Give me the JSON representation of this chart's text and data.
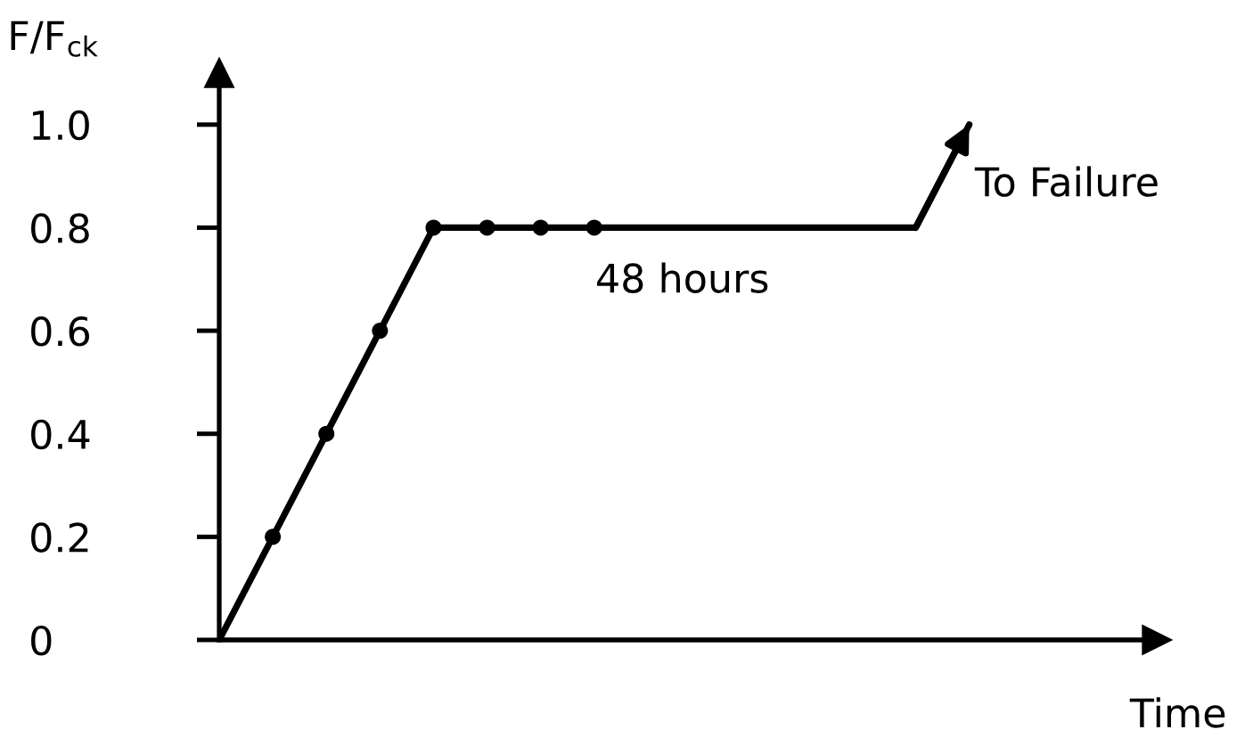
{
  "chart_data": {
    "type": "line",
    "xlabel": "Time",
    "ylabel": "F/F$_{ck}$",
    "categories": [
      null,
      null,
      null,
      null,
      null,
      null,
      null,
      null,
      null,
      null,
      null,
      null,
      null,
      null,
      null
    ],
    "series": [
      {
        "color": "#000000",
        "values": [
          0,
          0.2,
          0.4,
          0.6,
          0.8,
          0.8,
          0.8,
          0.8,
          0.8,
          0.8,
          0.8,
          0.8,
          0.8,
          0.8,
          1.0
        ]
      },
      {
        "type": "scatter",
        "color": "#000000",
        "marker": "circle",
        "values": [
          null,
          0.2,
          0.4,
          0.6,
          0.8,
          0.8,
          0.8,
          0.8,
          null,
          null,
          null,
          null,
          null,
          null,
          null
        ]
      }
    ],
    "ylim": [
      0,
      1.1
    ],
    "yticks": [
      0,
      0.2,
      0.4,
      0.6,
      0.8,
      {
        "value": 1,
        "label": "1.0"
      }
    ],
    "annotations": [
      "48 hours",
      "To Failure"
    ],
    "tick_labels": "y",
    "grid": false,
    "legend": false
  }
}
